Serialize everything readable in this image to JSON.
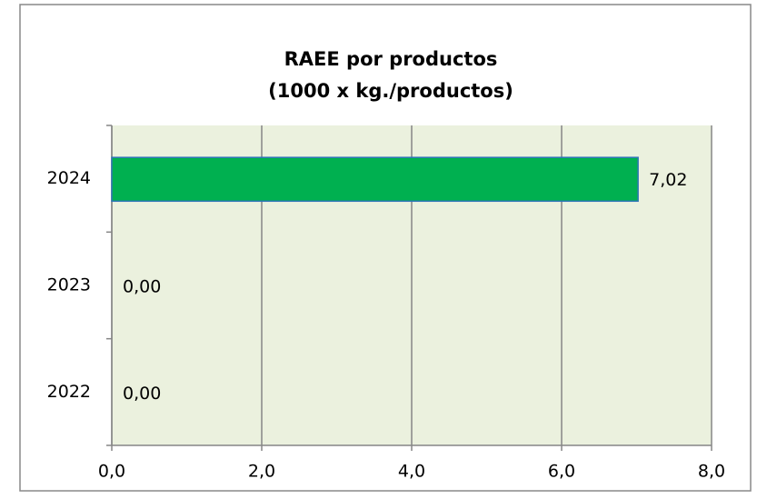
{
  "chart_data": {
    "type": "hbar",
    "title": "RAEE por productos",
    "subtitle": "(1000 x kg./productos)",
    "categories": [
      "2024",
      "2023",
      "2022"
    ],
    "values": [
      7.02,
      0,
      0
    ],
    "value_labels": [
      "7,02",
      "0,00",
      "0,00"
    ],
    "color": "#00b050",
    "edge_color": "#2e75b6",
    "xlim": [
      0,
      8
    ],
    "xticks": [
      {
        "value": 0,
        "label": "0,0"
      },
      {
        "value": 2,
        "label": "2,0"
      },
      {
        "value": 4,
        "label": "4,0"
      },
      {
        "value": 6,
        "label": "6,0"
      },
      {
        "value": 8,
        "label": "8,0"
      }
    ],
    "grid": true
  }
}
